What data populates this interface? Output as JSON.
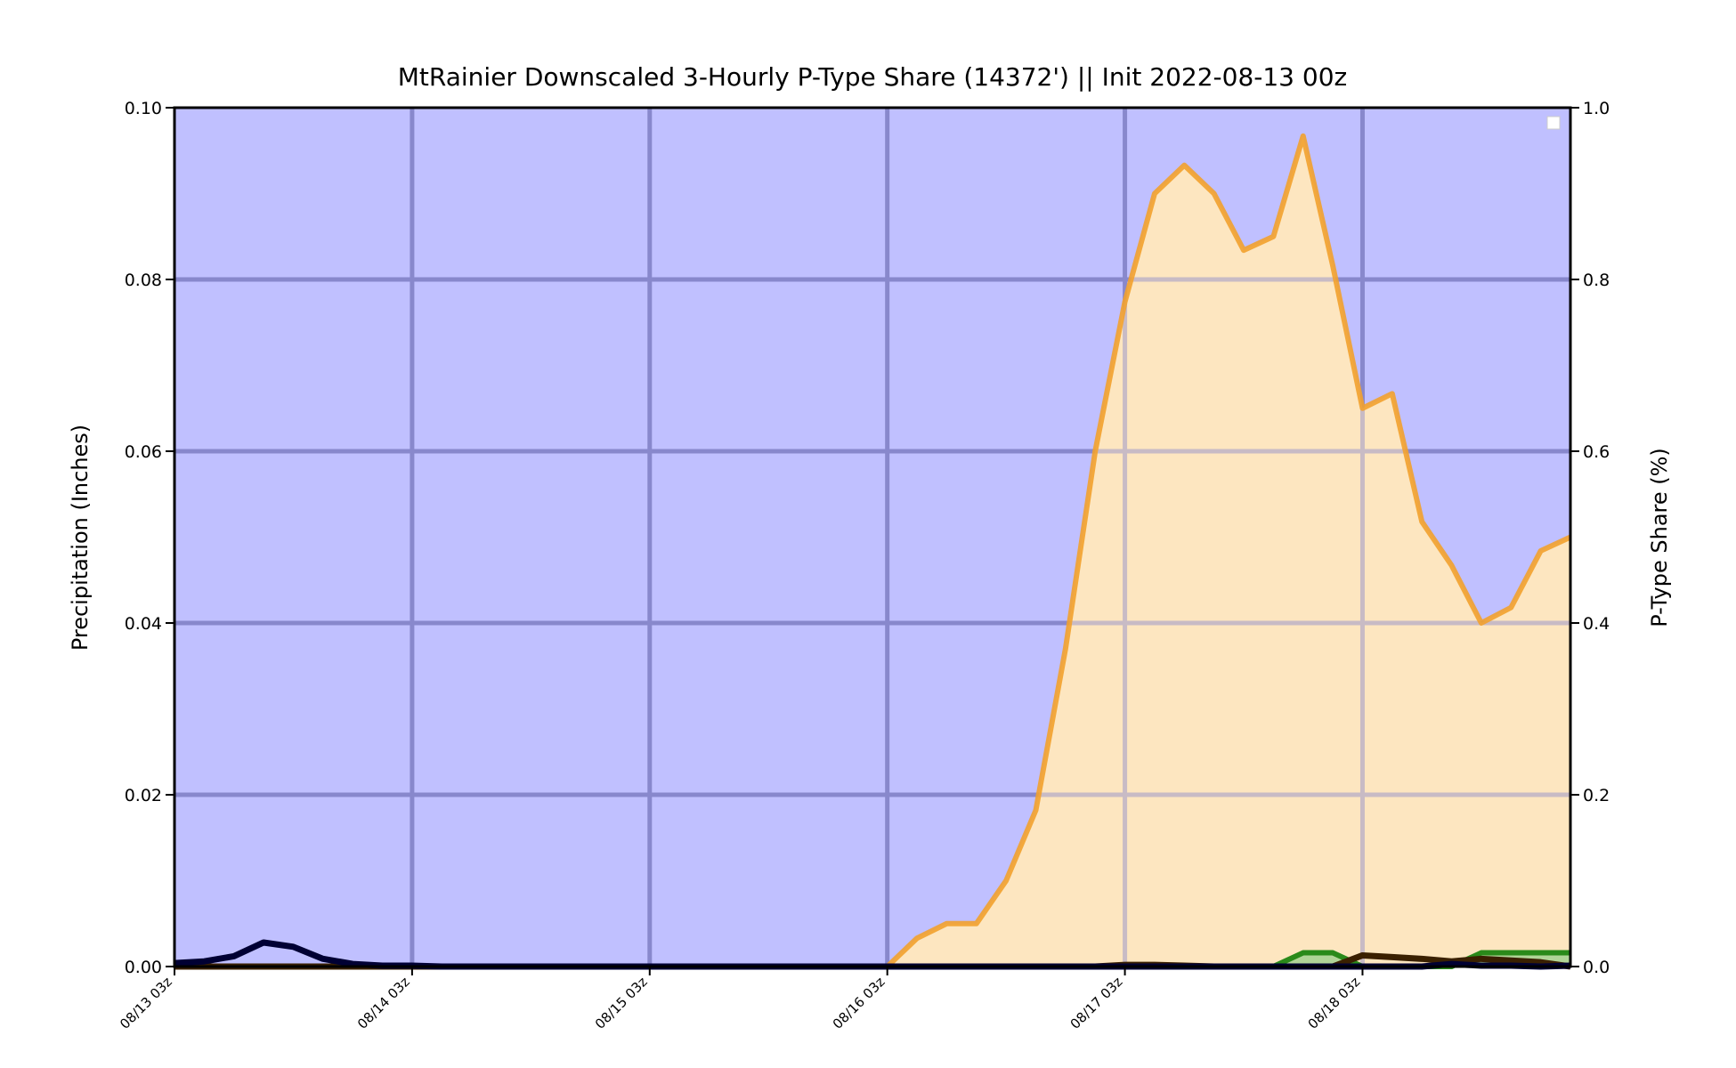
{
  "chart_data": {
    "type": "area",
    "title": "MtRainier Downscaled 3-Hourly P-Type Share (14372') || Init 2022-08-13 00z",
    "ylabel_left": "Precipitation (Inches)",
    "ylabel_right": "P-Type Share (%)",
    "ylim_left": [
      0,
      0.1
    ],
    "ylim_right": [
      0,
      1.0
    ],
    "yticks_left": [
      "0.00",
      "0.02",
      "0.04",
      "0.06",
      "0.08",
      "0.10"
    ],
    "yticks_right": [
      "0.0",
      "0.2",
      "0.4",
      "0.6",
      "0.8",
      "1.0"
    ],
    "x_tick_labels": [
      "08/13 03z",
      "08/14 03z",
      "08/15 03z",
      "08/16 03z",
      "08/17 03z",
      "08/18 03z"
    ],
    "x_step_hours": 3,
    "grid": true,
    "legend": "top-right",
    "colors": {
      "snow_fill": "#c0c0ff",
      "rain_fill": "#fde6c0",
      "rain_line": "#f2a12e",
      "grid": "#8888cc",
      "grid_on_rain": "#c8b088",
      "qpf_line": "#000033",
      "ice_line": "#2a8a1a",
      "mix_line": "#3a2000"
    },
    "series": [
      {
        "key": "rain_share",
        "axis": "right",
        "values": [
          0,
          0,
          0,
          0,
          0,
          0,
          0,
          0,
          0,
          0,
          0,
          0,
          0,
          0,
          0,
          0,
          0,
          0,
          0,
          0,
          0,
          0,
          0,
          0,
          0,
          0.033,
          0.05,
          0.05,
          0.1,
          0.182,
          0.37,
          0.6,
          0.774,
          0.9,
          0.933,
          0.9,
          0.834,
          0.85,
          0.967,
          0.816,
          0.65,
          0.667,
          0.518,
          0.467,
          0.4,
          0.418,
          0.484,
          0.5
        ]
      },
      {
        "key": "qpf",
        "axis": "left",
        "values": [
          0.0004,
          0.0006,
          0.0012,
          0.0028,
          0.0023,
          0.0009,
          0.0003,
          0.0001,
          0.0001,
          0,
          0,
          0,
          0,
          0,
          0,
          0,
          0,
          0,
          0,
          0,
          0,
          0,
          0,
          0,
          0,
          0,
          0,
          0,
          0,
          0,
          0,
          0,
          0,
          0,
          0,
          0,
          0,
          0,
          0,
          0,
          0,
          0,
          0,
          0.0003,
          0.0001,
          0.0001,
          0,
          0.0001
        ]
      },
      {
        "key": "ice_share",
        "axis": "right",
        "values": [
          0,
          0,
          0,
          0,
          0,
          0,
          0,
          0,
          0,
          0,
          0,
          0,
          0,
          0,
          0,
          0,
          0,
          0,
          0,
          0,
          0,
          0,
          0,
          0,
          0,
          0,
          0,
          0,
          0,
          0,
          0,
          0,
          0,
          0,
          0,
          0,
          0,
          0,
          0.016,
          0.016,
          0,
          0,
          0,
          0,
          0.016,
          0.016,
          0.016,
          0.016
        ]
      },
      {
        "key": "mix_share",
        "axis": "right",
        "values": [
          0,
          0,
          0,
          0,
          0,
          0,
          0,
          0,
          0,
          0,
          0,
          0,
          0,
          0,
          0,
          0,
          0,
          0,
          0,
          0,
          0,
          0,
          0,
          0,
          0,
          0,
          0,
          0,
          0,
          0,
          0,
          0,
          0.002,
          0.002,
          0.001,
          0,
          0,
          0,
          0,
          0,
          0.013,
          0.011,
          0.009,
          0.006,
          0.009,
          0.007,
          0.005,
          0
        ]
      }
    ]
  }
}
